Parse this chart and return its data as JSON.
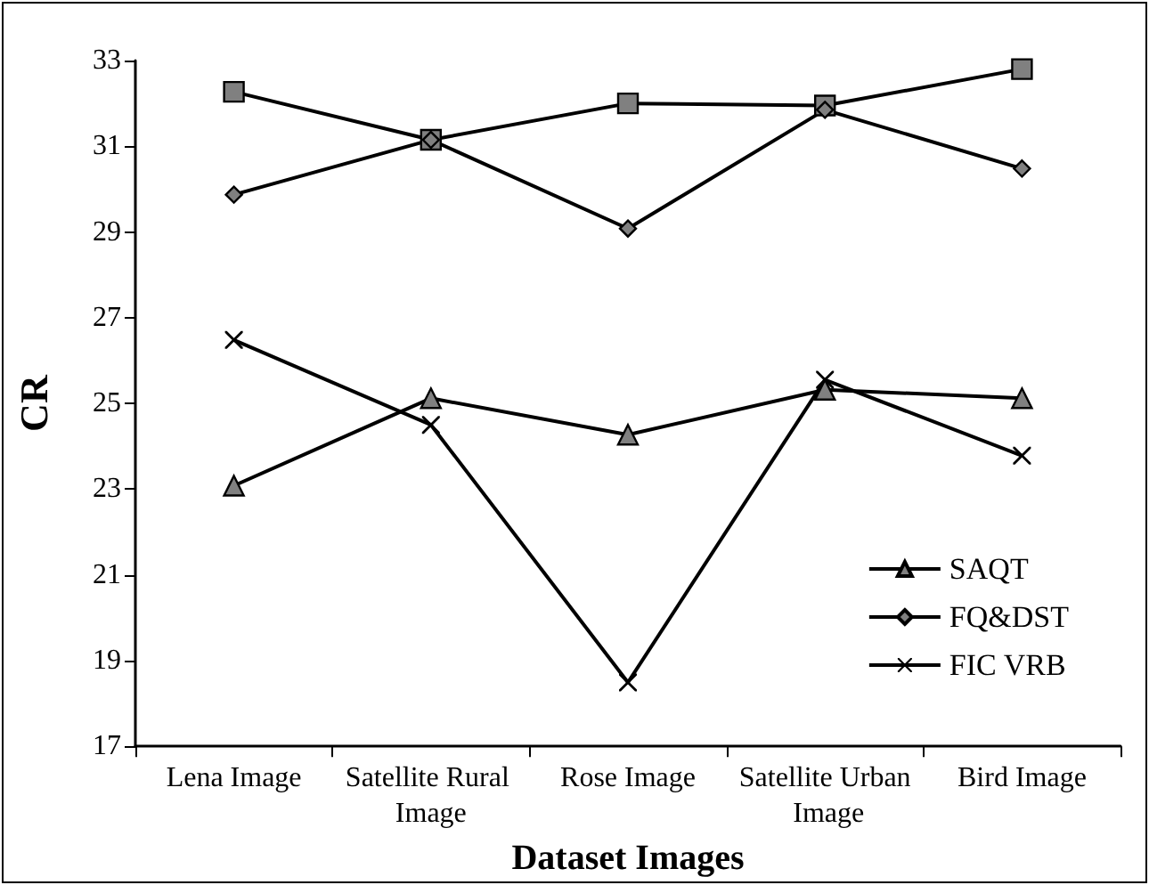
{
  "chart_data": {
    "type": "line",
    "xlabel": "Dataset Images",
    "ylabel": "CR",
    "categories": [
      "Lena Image",
      "Satellite Rural Image",
      "Rose Image",
      "Satellite Urban Image",
      "Bird Image"
    ],
    "series": [
      {
        "color": "#808080",
        "marker": "square",
        "values": [
          32.27,
          31.15,
          32.0,
          31.95,
          32.8
        ]
      },
      {
        "name": "SAQT",
        "color": "#808080",
        "marker": "triangle",
        "values": [
          23.08,
          25.12,
          24.27,
          25.32,
          25.12
        ]
      },
      {
        "name": "FQ&DST",
        "color": "#808080",
        "marker": "diamond",
        "values": [
          29.87,
          31.15,
          29.08,
          31.85,
          30.48
        ]
      },
      {
        "name": "FIC VRB",
        "color": "#000000",
        "marker": "cross",
        "values": [
          26.48,
          24.5,
          18.49,
          25.55,
          23.78
        ]
      }
    ],
    "ylim": [
      17,
      33
    ],
    "yticks": [
      17,
      19,
      21,
      23,
      25,
      27,
      29,
      31,
      33
    ],
    "grid": false,
    "legend": "bottom right"
  }
}
